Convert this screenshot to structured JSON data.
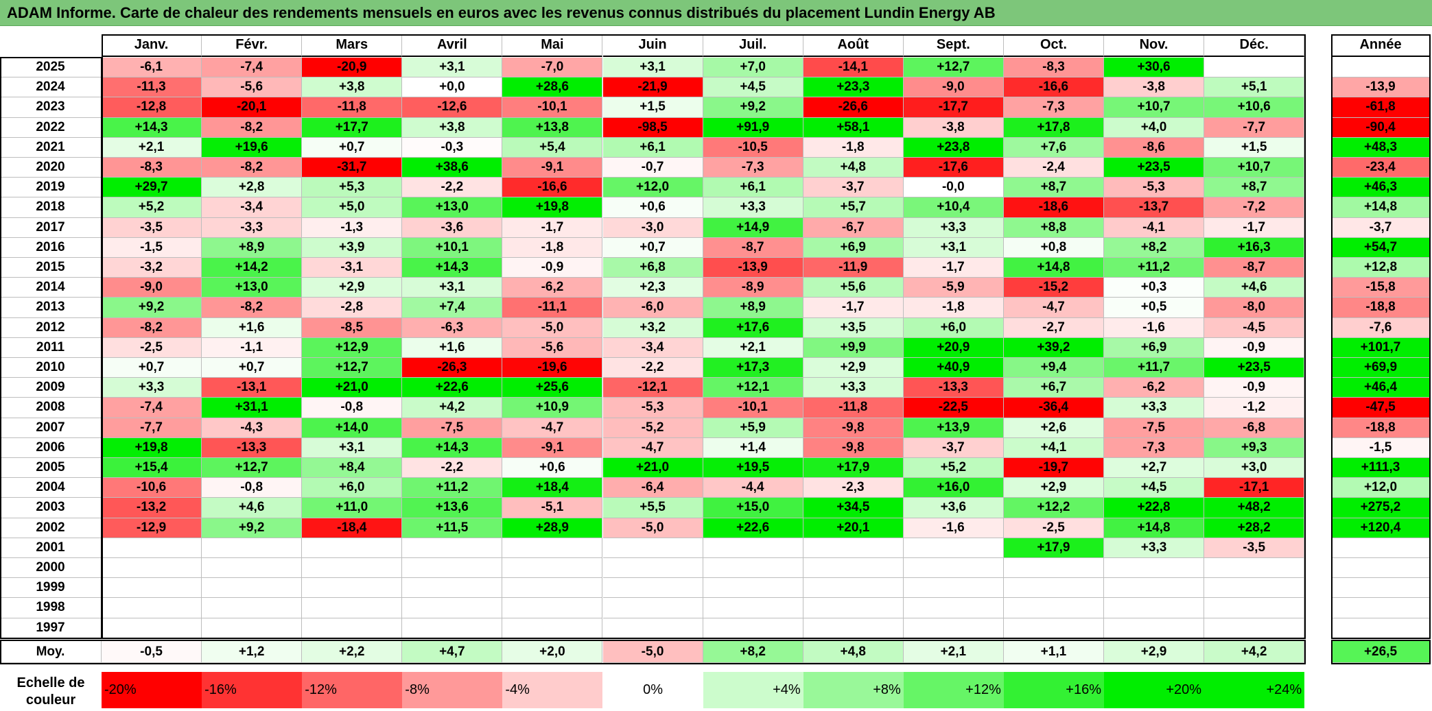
{
  "title": "ADAM Informe. Carte de chaleur des rendements mensuels en euros avec les revenus connus distribués du placement Lundin Energy AB",
  "chart_data": {
    "type": "heatmap",
    "title": "ADAM Informe. Carte de chaleur des rendements mensuels en euros avec les revenus connus distribués du placement Lundin Energy AB",
    "months": [
      "Janv.",
      "Févr.",
      "Mars",
      "Avril",
      "Mai",
      "Juin",
      "Juil.",
      "Août",
      "Sept.",
      "Oct.",
      "Nov.",
      "Déc."
    ],
    "year_header": "Année",
    "rows": [
      {
        "year": "2025",
        "values": [
          "-6,1",
          "-7,4",
          "-20,9",
          "+3,1",
          "-7,0",
          "+3,1",
          "+7,0",
          "-14,1",
          "+12,7",
          "-8,3",
          "+30,6",
          ""
        ],
        "annual": ""
      },
      {
        "year": "2024",
        "values": [
          "-11,3",
          "-5,6",
          "+3,8",
          "+0,0",
          "+28,6",
          "-21,9",
          "+4,5",
          "+23,3",
          "-9,0",
          "-16,6",
          "-3,8",
          "+5,1"
        ],
        "annual": "-13,9"
      },
      {
        "year": "2023",
        "values": [
          "-12,8",
          "-20,1",
          "-11,8",
          "-12,6",
          "-10,1",
          "+1,5",
          "+9,2",
          "-26,6",
          "-17,7",
          "-7,3",
          "+10,7",
          "+10,6"
        ],
        "annual": "-61,8"
      },
      {
        "year": "2022",
        "values": [
          "+14,3",
          "-8,2",
          "+17,7",
          "+3,8",
          "+13,8",
          "-98,5",
          "+91,9",
          "+58,1",
          "-3,8",
          "+17,8",
          "+4,0",
          "-7,7"
        ],
        "annual": "-90,4"
      },
      {
        "year": "2021",
        "values": [
          "+2,1",
          "+19,6",
          "+0,7",
          "-0,3",
          "+5,4",
          "+6,1",
          "-10,5",
          "-1,8",
          "+23,8",
          "+7,6",
          "-8,6",
          "+1,5"
        ],
        "annual": "+48,3"
      },
      {
        "year": "2020",
        "values": [
          "-8,3",
          "-8,2",
          "-31,7",
          "+38,6",
          "-9,1",
          "-0,7",
          "-7,3",
          "+4,8",
          "-17,6",
          "-2,4",
          "+23,5",
          "+10,7"
        ],
        "annual": "-23,4"
      },
      {
        "year": "2019",
        "values": [
          "+29,7",
          "+2,8",
          "+5,3",
          "-2,2",
          "-16,6",
          "+12,0",
          "+6,1",
          "-3,7",
          "-0,0",
          "+8,7",
          "-5,3",
          "+8,7"
        ],
        "annual": "+46,3"
      },
      {
        "year": "2018",
        "values": [
          "+5,2",
          "-3,4",
          "+5,0",
          "+13,0",
          "+19,8",
          "+0,6",
          "+3,3",
          "+5,7",
          "+10,4",
          "-18,6",
          "-13,7",
          "-7,2"
        ],
        "annual": "+14,8"
      },
      {
        "year": "2017",
        "values": [
          "-3,5",
          "-3,3",
          "-1,3",
          "-3,6",
          "-1,7",
          "-3,0",
          "+14,9",
          "-6,7",
          "+3,3",
          "+8,8",
          "-4,1",
          "-1,7"
        ],
        "annual": "-3,7"
      },
      {
        "year": "2016",
        "values": [
          "-1,5",
          "+8,9",
          "+3,9",
          "+10,1",
          "-1,8",
          "+0,7",
          "-8,7",
          "+6,9",
          "+3,1",
          "+0,8",
          "+8,2",
          "+16,3"
        ],
        "annual": "+54,7"
      },
      {
        "year": "2015",
        "values": [
          "-3,2",
          "+14,2",
          "-3,1",
          "+14,3",
          "-0,9",
          "+6,8",
          "-13,9",
          "-11,9",
          "-1,7",
          "+14,8",
          "+11,2",
          "-8,7"
        ],
        "annual": "+12,8"
      },
      {
        "year": "2014",
        "values": [
          "-9,0",
          "+13,0",
          "+2,9",
          "+3,1",
          "-6,2",
          "+2,3",
          "-8,9",
          "+5,6",
          "-5,9",
          "-15,2",
          "+0,3",
          "+4,6"
        ],
        "annual": "-15,8"
      },
      {
        "year": "2013",
        "values": [
          "+9,2",
          "-8,2",
          "-2,8",
          "+7,4",
          "-11,1",
          "-6,0",
          "+8,9",
          "-1,7",
          "-1,8",
          "-4,7",
          "+0,5",
          "-8,0"
        ],
        "annual": "-18,8"
      },
      {
        "year": "2012",
        "values": [
          "-8,2",
          "+1,6",
          "-8,5",
          "-6,3",
          "-5,0",
          "+3,2",
          "+17,6",
          "+3,5",
          "+6,0",
          "-2,7",
          "-1,6",
          "-4,5"
        ],
        "annual": "-7,6"
      },
      {
        "year": "2011",
        "values": [
          "-2,5",
          "-1,1",
          "+12,9",
          "+1,6",
          "-5,6",
          "-3,4",
          "+2,1",
          "+9,9",
          "+20,9",
          "+39,2",
          "+6,9",
          "-0,9"
        ],
        "annual": "+101,7"
      },
      {
        "year": "2010",
        "values": [
          "+0,7",
          "+0,7",
          "+12,7",
          "-26,3",
          "-19,6",
          "-2,2",
          "+17,3",
          "+2,9",
          "+40,9",
          "+9,4",
          "+11,7",
          "+23,5"
        ],
        "annual": "+69,9"
      },
      {
        "year": "2009",
        "values": [
          "+3,3",
          "-13,1",
          "+21,0",
          "+22,6",
          "+25,6",
          "-12,1",
          "+12,1",
          "+3,3",
          "-13,3",
          "+6,7",
          "-6,2",
          "-0,9"
        ],
        "annual": "+46,4"
      },
      {
        "year": "2008",
        "values": [
          "-7,4",
          "+31,1",
          "-0,8",
          "+4,2",
          "+10,9",
          "-5,3",
          "-10,1",
          "-11,8",
          "-22,5",
          "-36,4",
          "+3,3",
          "-1,2"
        ],
        "annual": "-47,5"
      },
      {
        "year": "2007",
        "values": [
          "-7,7",
          "-4,3",
          "+14,0",
          "-7,5",
          "-4,7",
          "-5,2",
          "+5,9",
          "-9,8",
          "+13,9",
          "+2,6",
          "-7,5",
          "-6,8"
        ],
        "annual": "-18,8"
      },
      {
        "year": "2006",
        "values": [
          "+19,8",
          "-13,3",
          "+3,1",
          "+14,3",
          "-9,1",
          "-4,7",
          "+1,4",
          "-9,8",
          "-3,7",
          "+4,1",
          "-7,3",
          "+9,3"
        ],
        "annual": "-1,5"
      },
      {
        "year": "2005",
        "values": [
          "+15,4",
          "+12,7",
          "+8,4",
          "-2,2",
          "+0,6",
          "+21,0",
          "+19,5",
          "+17,9",
          "+5,2",
          "-19,7",
          "+2,7",
          "+3,0"
        ],
        "annual": "+111,3"
      },
      {
        "year": "2004",
        "values": [
          "-10,6",
          "-0,8",
          "+6,0",
          "+11,2",
          "+18,4",
          "-6,4",
          "-4,4",
          "-2,3",
          "+16,0",
          "+2,9",
          "+4,5",
          "-17,1"
        ],
        "annual": "+12,0"
      },
      {
        "year": "2003",
        "values": [
          "-13,2",
          "+4,6",
          "+11,0",
          "+13,6",
          "-5,1",
          "+5,5",
          "+15,0",
          "+34,5",
          "+3,6",
          "+12,2",
          "+22,8",
          "+48,2"
        ],
        "annual": "+275,2"
      },
      {
        "year": "2002",
        "values": [
          "-12,9",
          "+9,2",
          "-18,4",
          "+11,5",
          "+28,9",
          "-5,0",
          "+22,6",
          "+20,1",
          "-1,6",
          "-2,5",
          "+14,8",
          "+28,2"
        ],
        "annual": "+120,4"
      },
      {
        "year": "2001",
        "values": [
          "",
          "",
          "",
          "",
          "",
          "",
          "",
          "",
          "",
          "+17,9",
          "+3,3",
          "-3,5"
        ],
        "annual": ""
      },
      {
        "year": "2000",
        "values": [
          "",
          "",
          "",
          "",
          "",
          "",
          "",
          "",
          "",
          "",
          "",
          ""
        ],
        "annual": ""
      },
      {
        "year": "1999",
        "values": [
          "",
          "",
          "",
          "",
          "",
          "",
          "",
          "",
          "",
          "",
          "",
          ""
        ],
        "annual": ""
      },
      {
        "year": "1998",
        "values": [
          "",
          "",
          "",
          "",
          "",
          "",
          "",
          "",
          "",
          "",
          "",
          ""
        ],
        "annual": ""
      },
      {
        "year": "1997",
        "values": [
          "",
          "",
          "",
          "",
          "",
          "",
          "",
          "",
          "",
          "",
          "",
          ""
        ],
        "annual": ""
      }
    ],
    "average": {
      "label": "Moy.",
      "values": [
        "-0,5",
        "+1,2",
        "+2,2",
        "+4,7",
        "+2,0",
        "-5,0",
        "+8,2",
        "+4,8",
        "+2,1",
        "+1,1",
        "+2,9",
        "+4,2"
      ],
      "annual": "+26,5"
    },
    "color_scale": {
      "label": "Echelle de couleur",
      "steps": [
        "-20%",
        "-16%",
        "-12%",
        "-8%",
        "-4%",
        "0%",
        "+4%",
        "+8%",
        "+12%",
        "+16%",
        "+20%",
        "+24%"
      ],
      "negative_color": "#ff0000",
      "neutral_color": "#ffffff",
      "positive_color": "#00ee00"
    }
  }
}
